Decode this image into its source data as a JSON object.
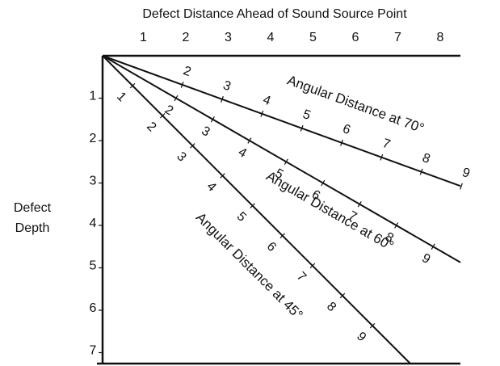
{
  "title": "Defect Distance Ahead of Sound Source Point",
  "top_axis": {
    "labels": [
      1,
      2,
      3,
      4,
      5,
      6,
      7,
      8
    ]
  },
  "left_axis": {
    "title": [
      "Defect",
      "Depth"
    ],
    "labels": [
      1,
      2,
      3,
      4,
      5,
      6,
      7
    ]
  },
  "lines": [
    {
      "label": "Angular Distance at 70°",
      "tick_labels": [
        2,
        3,
        4,
        5,
        6,
        7,
        8,
        9
      ]
    },
    {
      "label": "Angular Distance at 60°",
      "tick_labels": [
        2,
        3,
        4,
        5,
        6,
        7,
        8,
        9
      ]
    },
    {
      "label": "Angular Distance at 45°",
      "tick_labels": [
        1,
        2,
        3,
        4,
        5,
        6,
        7,
        8,
        9
      ]
    }
  ]
}
